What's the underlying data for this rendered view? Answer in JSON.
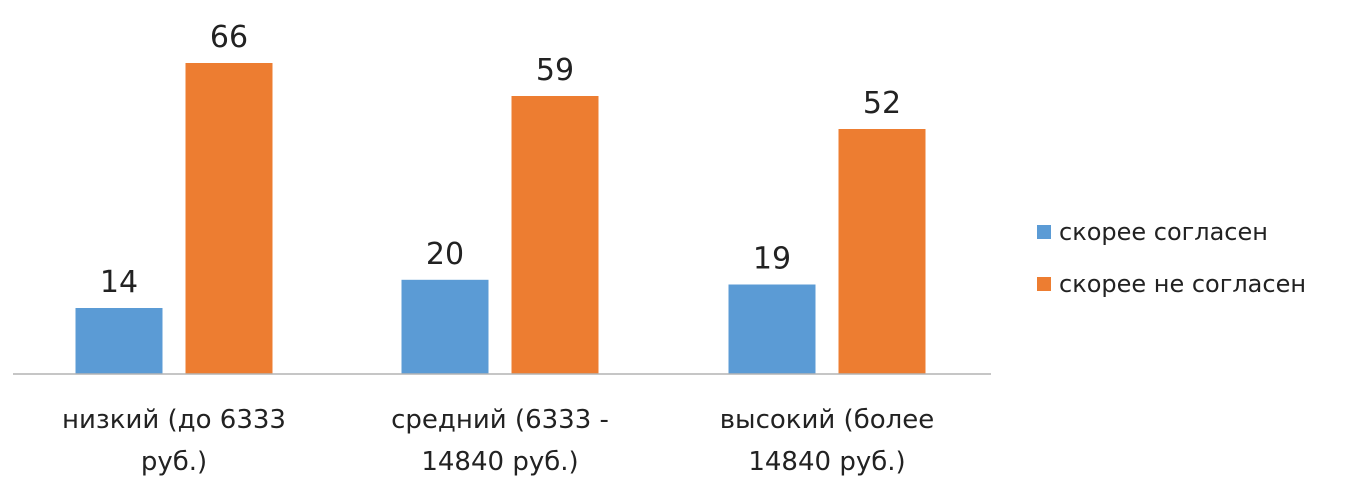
{
  "chart_data": {
    "type": "bar",
    "title": "",
    "xlabel": "",
    "ylabel": "",
    "ylim": [
      0,
      66
    ],
    "grid": false,
    "legend_position": "right",
    "categories": [
      [
        "низкий (до 6333",
        "руб.)"
      ],
      [
        "средний (6333 -",
        "14840 руб.)"
      ],
      [
        "высокий (более",
        "14840 руб.)"
      ]
    ],
    "series": [
      {
        "name": "скорее согласен",
        "color": "#5b9bd5",
        "values": [
          14,
          20,
          19
        ]
      },
      {
        "name": "скорее не согласен",
        "color": "#ed7d31",
        "values": [
          66,
          59,
          52
        ]
      }
    ],
    "data_labels": [
      [
        "14",
        "20",
        "19"
      ],
      [
        "66",
        "59",
        "52"
      ]
    ]
  }
}
